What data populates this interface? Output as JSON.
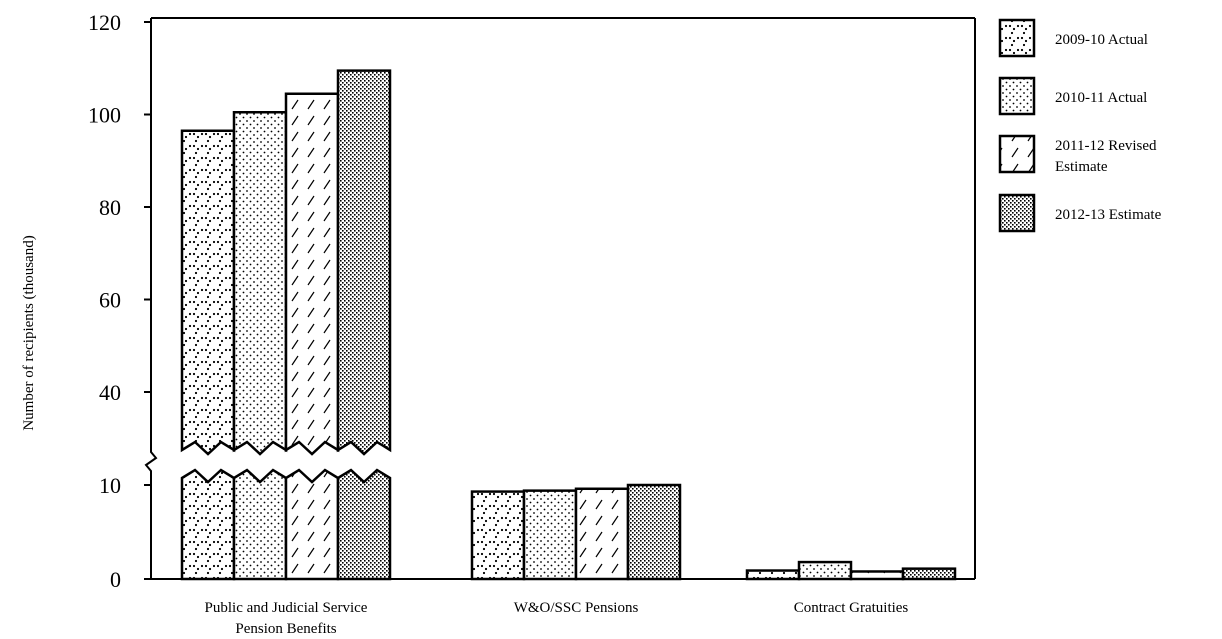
{
  "chart_data": {
    "type": "bar",
    "title": "",
    "xlabel": "",
    "ylabel": "Number of recipients (thousand)",
    "ylim": [
      0,
      120
    ],
    "axis_break": true,
    "y_ticks": [
      "0",
      "10",
      "40",
      "60",
      "80",
      "100",
      "120"
    ],
    "grid": false,
    "legend_position": "right",
    "categories": [
      [
        "Public and Judicial Service",
        "Pension Benefits"
      ],
      [
        "W&O/SSC Pensions"
      ],
      [
        "Contract Gratuities"
      ]
    ],
    "series": [
      {
        "name": "2009-10 Actual",
        "values": [
          96.5,
          9.3,
          0.9
        ]
      },
      {
        "name": "2010-11 Actual",
        "values": [
          100.5,
          9.4,
          1.8
        ]
      },
      {
        "name": "2011-12 Revised Estimate",
        "values": [
          104.5,
          9.6,
          0.8
        ]
      },
      {
        "name": "2012-13 Estimate",
        "values": [
          109.5,
          10.0,
          1.1
        ]
      }
    ],
    "legend_lines": [
      [
        "2009-10 Actual"
      ],
      [
        "2010-11 Actual"
      ],
      [
        "2011-12 Revised",
        "Estimate"
      ],
      [
        "2012-13 Estimate"
      ]
    ]
  }
}
